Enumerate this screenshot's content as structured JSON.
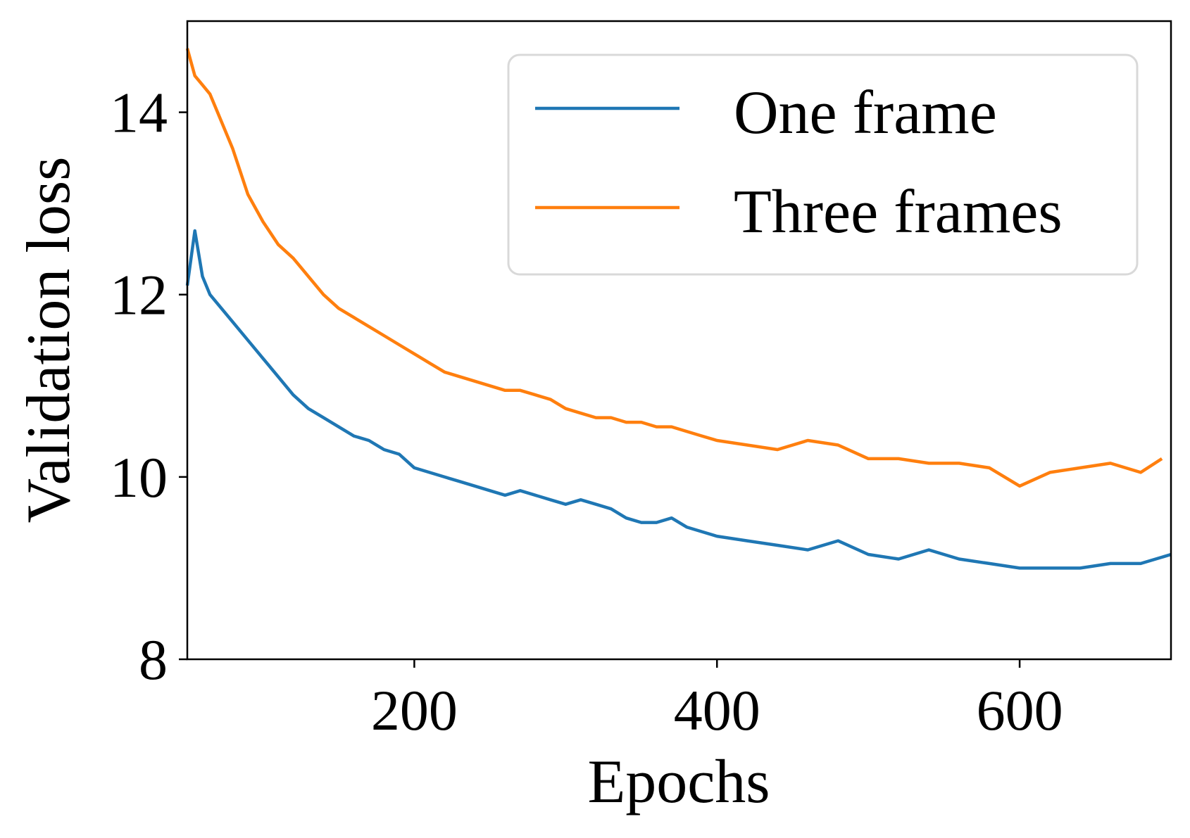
{
  "chart_data": {
    "type": "line",
    "title": "",
    "xlabel": "Epochs",
    "ylabel": "Validation loss",
    "xlim": [
      50,
      700
    ],
    "ylim": [
      8,
      15
    ],
    "xticks": [
      200,
      400,
      600
    ],
    "yticks": [
      8,
      10,
      12,
      14
    ],
    "grid": false,
    "legend_position": "top-right",
    "series": [
      {
        "name": "One frame",
        "color": "#1f77b4",
        "x": [
          50,
          55,
          60,
          65,
          70,
          80,
          90,
          100,
          110,
          120,
          130,
          140,
          150,
          160,
          170,
          180,
          190,
          200,
          210,
          220,
          230,
          240,
          250,
          260,
          270,
          280,
          290,
          300,
          310,
          320,
          330,
          340,
          350,
          360,
          370,
          380,
          390,
          400,
          420,
          440,
          460,
          480,
          500,
          520,
          540,
          560,
          580,
          600,
          620,
          640,
          660,
          680,
          700
        ],
        "y": [
          12.1,
          12.7,
          12.2,
          12.0,
          11.9,
          11.7,
          11.5,
          11.3,
          11.1,
          10.9,
          10.75,
          10.65,
          10.55,
          10.45,
          10.4,
          10.3,
          10.25,
          10.1,
          10.05,
          10.0,
          9.95,
          9.9,
          9.85,
          9.8,
          9.85,
          9.8,
          9.75,
          9.7,
          9.75,
          9.7,
          9.65,
          9.55,
          9.5,
          9.5,
          9.55,
          9.45,
          9.4,
          9.35,
          9.3,
          9.25,
          9.2,
          9.3,
          9.15,
          9.1,
          9.2,
          9.1,
          9.05,
          9.0,
          9.0,
          9.0,
          9.05,
          9.05,
          9.15
        ]
      },
      {
        "name": "Three frames",
        "color": "#ff7f0e",
        "x": [
          50,
          55,
          60,
          65,
          70,
          80,
          90,
          100,
          110,
          120,
          130,
          140,
          150,
          160,
          170,
          180,
          190,
          200,
          210,
          220,
          230,
          240,
          250,
          260,
          270,
          280,
          290,
          300,
          310,
          320,
          330,
          340,
          350,
          360,
          370,
          380,
          390,
          400,
          420,
          440,
          460,
          480,
          500,
          520,
          540,
          560,
          580,
          600,
          620,
          640,
          660,
          680,
          694
        ],
        "y": [
          14.7,
          14.4,
          14.3,
          14.2,
          14.0,
          13.6,
          13.1,
          12.8,
          12.55,
          12.4,
          12.2,
          12.0,
          11.85,
          11.75,
          11.65,
          11.55,
          11.45,
          11.35,
          11.25,
          11.15,
          11.1,
          11.05,
          11.0,
          10.95,
          10.95,
          10.9,
          10.85,
          10.75,
          10.7,
          10.65,
          10.65,
          10.6,
          10.6,
          10.55,
          10.55,
          10.5,
          10.45,
          10.4,
          10.35,
          10.3,
          10.4,
          10.35,
          10.2,
          10.2,
          10.15,
          10.15,
          10.1,
          9.9,
          10.05,
          10.1,
          10.15,
          10.05,
          10.2
        ]
      }
    ]
  }
}
